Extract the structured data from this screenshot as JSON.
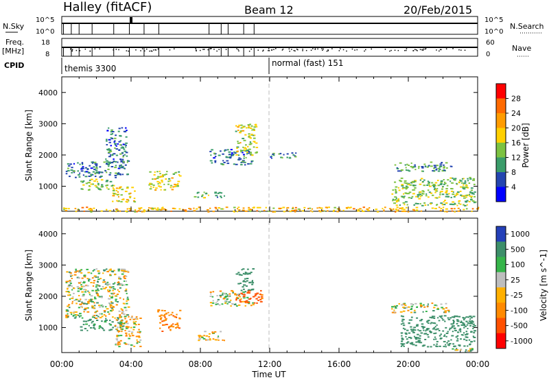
{
  "header": {
    "station": "Halley (fitACF)",
    "beam": "Beam 12",
    "date": "20/Feb/2015"
  },
  "top_panels": {
    "nsky_label": "N.Sky",
    "nsky_ticks": [
      "10^5",
      "10^0"
    ],
    "nsearch_label": "N.Search",
    "nsearch_ticks": [
      "10^5",
      "10^0"
    ],
    "freq_label_1": "Freq.",
    "freq_label_2": "[MHz]",
    "freq_ticks": [
      "18",
      "8"
    ],
    "nave_label": "Nave",
    "nave_ticks": [
      "60",
      "0"
    ],
    "cpid_label": "CPID",
    "cpid_segments": [
      {
        "label": "themis 3300",
        "start_hour": 0
      },
      {
        "label": "normal (fast) 151",
        "start_hour": 12
      }
    ]
  },
  "power_scale": {
    "label": "Power [dB]",
    "ticks": [
      "28",
      "24",
      "20",
      "16",
      "12",
      "8",
      "4"
    ],
    "colors": [
      "#ff0000",
      "#ff6a00",
      "#ff9c00",
      "#ffd000",
      "#7cc241",
      "#3a9c6a",
      "#2445b0",
      "#0000ff"
    ]
  },
  "velocity_scale": {
    "label": "Velocity [m s^-1]",
    "ticks": [
      "1000",
      "500",
      "100",
      "25",
      "-25",
      "-100",
      "-500",
      "-1000"
    ],
    "colors": [
      "#2440b8",
      "#3d8f6a",
      "#36b54a",
      "#bebebe",
      "#ffb000",
      "#ff8a00",
      "#ff5000",
      "#ff0000"
    ]
  },
  "chart_data": [
    {
      "type": "heatmap",
      "name": "Power",
      "ylabel": "Slant Range [km]",
      "xlabel": "Time UT",
      "x_ticks": [
        "00:00",
        "04:00",
        "08:00",
        "12:00",
        "16:00",
        "20:00",
        "00:00"
      ],
      "y_ticks": [
        1000,
        2000,
        3000,
        4000
      ],
      "xlim_hours": [
        0,
        24
      ],
      "ylim_km": [
        200,
        4500
      ],
      "regions": [
        {
          "x0": 0.2,
          "x1": 3.8,
          "y0": 1300,
          "y1": 1800,
          "value": 8
        },
        {
          "x0": 2.5,
          "x1": 3.8,
          "y0": 1700,
          "y1": 2900,
          "value": 8
        },
        {
          "x0": 1.0,
          "x1": 3.0,
          "y0": 900,
          "y1": 1250,
          "value": 14
        },
        {
          "x0": 2.8,
          "x1": 4.2,
          "y0": 500,
          "y1": 1000,
          "value": 18
        },
        {
          "x0": 5.0,
          "x1": 6.8,
          "y0": 900,
          "y1": 1500,
          "value": 16
        },
        {
          "x0": 7.6,
          "x1": 9.4,
          "y0": 650,
          "y1": 850,
          "value": 12
        },
        {
          "x0": 8.5,
          "x1": 11.0,
          "y0": 1700,
          "y1": 2200,
          "value": 8
        },
        {
          "x0": 10.0,
          "x1": 11.2,
          "y0": 2000,
          "y1": 3000,
          "value": 16
        },
        {
          "x0": 12.0,
          "x1": 13.5,
          "y0": 1900,
          "y1": 2100,
          "value": 8
        },
        {
          "x0": 19.0,
          "x1": 22.5,
          "y0": 1500,
          "y1": 1800,
          "value": 10
        },
        {
          "x0": 19.0,
          "x1": 23.8,
          "y0": 400,
          "y1": 1300,
          "value": 14
        },
        {
          "x0": 0.0,
          "x1": 24.0,
          "y0": 200,
          "y1": 350,
          "value": 20
        }
      ]
    },
    {
      "type": "heatmap",
      "name": "Velocity",
      "ylabel": "Slant Range [km]",
      "xlabel": "Time UT",
      "x_ticks": [
        "00:00",
        "04:00",
        "08:00",
        "12:00",
        "16:00",
        "20:00",
        "00:00"
      ],
      "y_ticks": [
        1000,
        2000,
        3000,
        4000
      ],
      "xlim_hours": [
        0,
        24
      ],
      "ylim_km": [
        200,
        4500
      ],
      "regions": [
        {
          "x0": 0.2,
          "x1": 3.8,
          "y0": 1300,
          "y1": 2900,
          "value": 0
        },
        {
          "x0": 1.0,
          "x1": 3.5,
          "y0": 900,
          "y1": 1300,
          "value": 200
        },
        {
          "x0": 3.0,
          "x1": 4.5,
          "y0": 400,
          "y1": 1400,
          "value": -80
        },
        {
          "x0": 5.5,
          "x1": 6.8,
          "y0": 900,
          "y1": 1600,
          "value": -400
        },
        {
          "x0": 7.8,
          "x1": 9.4,
          "y0": 600,
          "y1": 900,
          "value": -80
        },
        {
          "x0": 8.5,
          "x1": 11.0,
          "y0": 1700,
          "y1": 2200,
          "value": 0
        },
        {
          "x0": 10.0,
          "x1": 11.0,
          "y0": 2200,
          "y1": 2900,
          "value": 300
        },
        {
          "x0": 10.0,
          "x1": 11.5,
          "y0": 1800,
          "y1": 2200,
          "value": -600
        },
        {
          "x0": 19.0,
          "x1": 22.5,
          "y0": 1500,
          "y1": 1800,
          "value": 0
        },
        {
          "x0": 19.5,
          "x1": 23.8,
          "y0": 400,
          "y1": 1400,
          "value": 300
        },
        {
          "x0": 22.5,
          "x1": 23.8,
          "y0": 250,
          "y1": 350,
          "value": 60
        }
      ]
    }
  ]
}
